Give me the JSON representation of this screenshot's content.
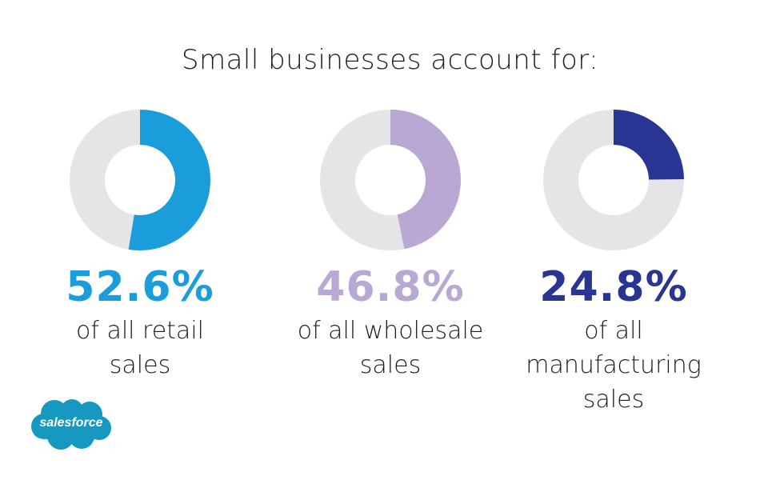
{
  "header": {
    "title": "Small businesses account for:"
  },
  "colors": {
    "track": "#e5e5e8",
    "retail": "#1b9ddb",
    "wholesale": "#baa8d4",
    "manufacturing": "#283592",
    "logo": "#1798c1"
  },
  "chart_data": {
    "type": "pie",
    "title": "Small businesses account for:",
    "series": [
      {
        "value": 52.6,
        "unit": "%",
        "label": "52.6%",
        "desc_lines": [
          "of all retail",
          "sales"
        ],
        "color": "#1b9ddb"
      },
      {
        "value": 46.8,
        "unit": "%",
        "label": "46.8%",
        "desc_lines": [
          "of all wholesale",
          "sales"
        ],
        "color": "#baa8d4"
      },
      {
        "value": 24.8,
        "unit": "%",
        "label": "24.8%",
        "desc_lines": [
          "of all",
          "manufacturing",
          "sales"
        ],
        "color": "#283592"
      }
    ]
  },
  "logo": {
    "text": "salesforce"
  }
}
